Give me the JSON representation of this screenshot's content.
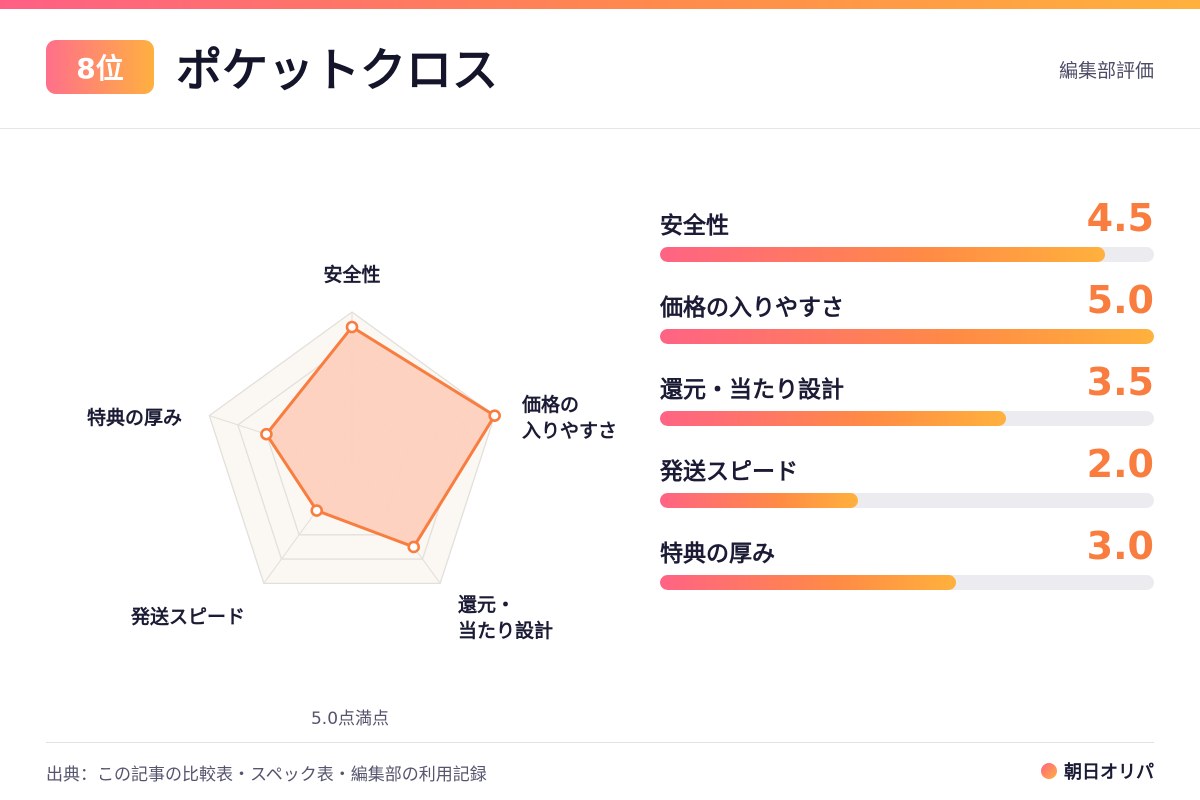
{
  "header": {
    "rank": "8位",
    "title": "ポケットクロス",
    "label": "編集部評価"
  },
  "chart_data": {
    "type": "radar",
    "max": 5.0,
    "axes": [
      "安全性",
      "価格の入りやすさ",
      "還元・当たり設計",
      "発送スピード",
      "特典の厚み"
    ],
    "radar_labels": [
      [
        "安全性"
      ],
      [
        "価格の",
        "入りやすさ"
      ],
      [
        "還元・",
        "当たり設計"
      ],
      [
        "発送スピード"
      ],
      [
        "特典の厚み"
      ]
    ],
    "values": [
      4.5,
      5.0,
      3.5,
      2.0,
      3.0
    ],
    "grid_levels": [
      1,
      2,
      3,
      4,
      5
    ],
    "scale_note": "5.0点満点",
    "colors": {
      "line": "#f87d3f",
      "fill": "#fdd0bd",
      "grid": "#e3dfdb",
      "grid_fill": "#fbf8f3",
      "value": "#f87d3f"
    }
  },
  "scores": [
    {
      "label": "安全性",
      "value_text": "4.5",
      "value": 4.5,
      "max": 5.0
    },
    {
      "label": "価格の入りやすさ",
      "value_text": "5.0",
      "value": 5.0,
      "max": 5.0
    },
    {
      "label": "還元・当たり設計",
      "value_text": "3.5",
      "value": 3.5,
      "max": 5.0
    },
    {
      "label": "発送スピード",
      "value_text": "2.0",
      "value": 2.0,
      "max": 5.0
    },
    {
      "label": "特典の厚み",
      "value_text": "3.0",
      "value": 3.0,
      "max": 5.0
    }
  ],
  "footer": {
    "source": "出典：この記事の比較表・スペック表・編集部の利用記録",
    "brand": "朝日オリパ"
  }
}
